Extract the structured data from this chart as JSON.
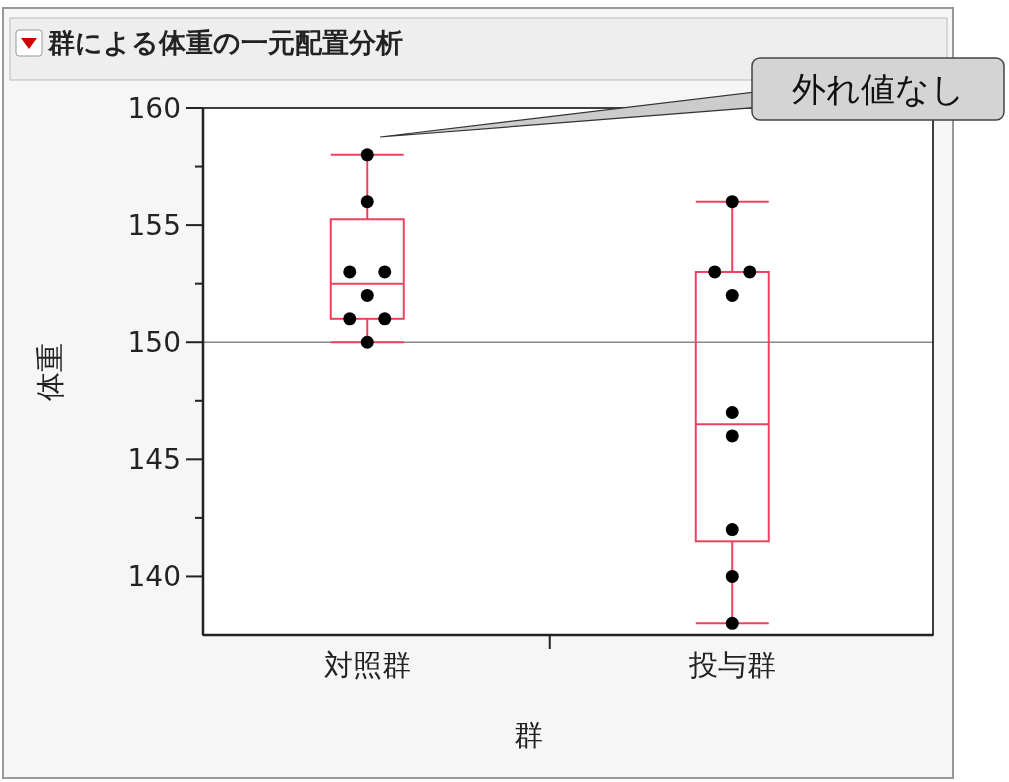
{
  "chart_data": {
    "type": "box",
    "title": "群による体重の一元配置分析",
    "xlabel": "群",
    "ylabel": "体重",
    "categories": [
      "対照群",
      "投与群"
    ],
    "color": "#ee4060",
    "boxes": [
      {
        "low": 150,
        "q1": 151,
        "median": 152.5,
        "q3": 155.25,
        "high": 158
      },
      {
        "low": 138,
        "q1": 141.5,
        "median": 146.5,
        "q3": 153,
        "high": 156
      }
    ],
    "series": [
      {
        "type": "scatter",
        "color": "#000000",
        "x": [
          "対照群",
          "対照群",
          "対照群",
          "対照群",
          "対照群",
          "対照群",
          "対照群",
          "対照群",
          "投与群",
          "投与群",
          "投与群",
          "投与群",
          "投与群",
          "投与群",
          "投与群",
          "投与群",
          "投与群"
        ],
        "values": [
          158,
          156,
          153,
          153,
          152,
          151,
          151,
          150,
          156,
          153,
          153,
          152,
          147,
          146,
          142,
          140,
          138
        ]
      }
    ],
    "ylim": [
      137.5,
      160
    ],
    "yticks": [
      140,
      {
        "value": 142.5,
        "label": null
      },
      145,
      {
        "value": 147.5,
        "label": null
      },
      150,
      {
        "value": 152.5,
        "label": null
      },
      155,
      {
        "value": 157.5,
        "label": null
      },
      160
    ],
    "ref_lines": [
      {
        "axis": "y",
        "value": 150,
        "color": "#888888"
      }
    ],
    "annotations": [
      "外れ値なし"
    ]
  }
}
